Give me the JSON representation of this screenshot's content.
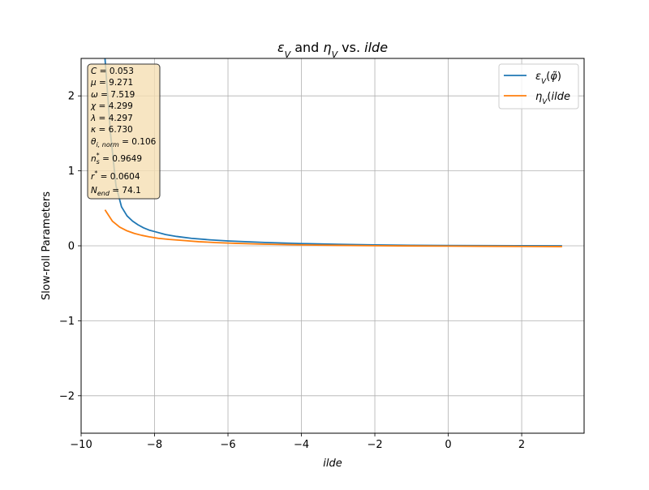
{
  "chart_data": {
    "type": "line",
    "title": {
      "parts": [
        {
          "text": "ε",
          "italic": true
        },
        {
          "text": "V",
          "italic": true,
          "sub": true
        },
        {
          "text": " and ",
          "italic": false
        },
        {
          "text": "η",
          "italic": true
        },
        {
          "text": "V",
          "italic": true,
          "sub": true
        },
        {
          "text": " vs. ",
          "italic": false
        },
        {
          "text": "ilde",
          "italic": true
        }
      ]
    },
    "xlabel": "ilde",
    "ylabel": "Slow-roll Parameters",
    "xlim": [
      -10,
      3.7
    ],
    "ylim": [
      -2.5,
      2.5
    ],
    "xticks": [
      -10,
      -8,
      -6,
      -4,
      -2,
      0,
      2
    ],
    "yticks": [
      -2,
      -1,
      0,
      1,
      2
    ],
    "xtick_labels": [
      "−10",
      "−8",
      "−6",
      "−4",
      "−2",
      "0",
      "2"
    ],
    "ytick_labels": [
      "−2",
      "−1",
      "0",
      "1",
      "2"
    ],
    "grid": true,
    "legend": {
      "placement": "top-right",
      "entries": [
        {
          "parts": [
            {
              "text": "ε",
              "italic": true
            },
            {
              "text": "V",
              "italic": true,
              "sub": true
            },
            {
              "text": "(",
              "italic": false
            },
            {
              "text": "φ̃",
              "italic": true
            },
            {
              "text": ")",
              "italic": false
            }
          ]
        },
        {
          "parts": [
            {
              "text": "η",
              "italic": true
            },
            {
              "text": "V",
              "italic": true,
              "sub": true
            },
            {
              "text": "(",
              "italic": false
            },
            {
              "text": "ilde",
              "italic": true
            }
          ]
        }
      ]
    },
    "annotation": {
      "lines": [
        {
          "sym": "C",
          "sub": "",
          "sup": "",
          "value": "= 0.053"
        },
        {
          "sym": "μ",
          "sub": "",
          "sup": "",
          "value": "= 9.271"
        },
        {
          "sym": "ω",
          "sub": "",
          "sup": "",
          "value": "= 7.519"
        },
        {
          "sym": "χ",
          "sub": "",
          "sup": "",
          "value": "= 4.299"
        },
        {
          "sym": "λ",
          "sub": "",
          "sup": "",
          "value": "= 4.297"
        },
        {
          "sym": "κ",
          "sub": "",
          "sup": "",
          "value": "= 6.730"
        },
        {
          "sym": "θ",
          "sub": "i, norm",
          "sup": "",
          "value": "= 0.106"
        },
        {
          "sym": "n",
          "sub": "s",
          "sup": "*",
          "value": "= 0.9649"
        },
        {
          "sym": "r",
          "sub": "",
          "sup": "*",
          "value": "= 0.0604"
        },
        {
          "sym": "N",
          "sub": "end",
          "sup": "",
          "value": "= 74.1"
        }
      ]
    },
    "series": [
      {
        "color": "#1f77b4",
        "x": [
          -9.35,
          -9.2,
          -9.05,
          -8.9,
          -8.75,
          -8.6,
          -8.45,
          -8.3,
          -8.15,
          -8.0,
          -7.7,
          -7.4,
          -7.0,
          -6.5,
          -6.0,
          -5.0,
          -4.0,
          -3.0,
          -2.0,
          -1.0,
          0.0,
          1.0,
          2.0,
          3.1
        ],
        "y": [
          2.5,
          1.5,
          0.8,
          0.52,
          0.4,
          0.33,
          0.28,
          0.24,
          0.21,
          0.19,
          0.15,
          0.125,
          0.1,
          0.08,
          0.065,
          0.045,
          0.03,
          0.02,
          0.012,
          0.007,
          0.004,
          0.002,
          0.001,
          0.0
        ]
      },
      {
        "color": "#ff7f0e",
        "x": [
          -9.35,
          -9.15,
          -8.95,
          -8.75,
          -8.55,
          -8.35,
          -8.15,
          -7.9,
          -7.6,
          -7.2,
          -6.8,
          -6.3,
          -5.8,
          -5.0,
          -4.0,
          -3.0,
          -2.0,
          -1.0,
          0.0,
          1.0,
          2.0,
          3.1
        ],
        "y": [
          0.48,
          0.33,
          0.25,
          0.2,
          0.165,
          0.14,
          0.12,
          0.1,
          0.085,
          0.07,
          0.055,
          0.042,
          0.033,
          0.022,
          0.012,
          0.006,
          0.001,
          -0.002,
          -0.004,
          -0.006,
          -0.008,
          -0.01
        ]
      }
    ]
  }
}
